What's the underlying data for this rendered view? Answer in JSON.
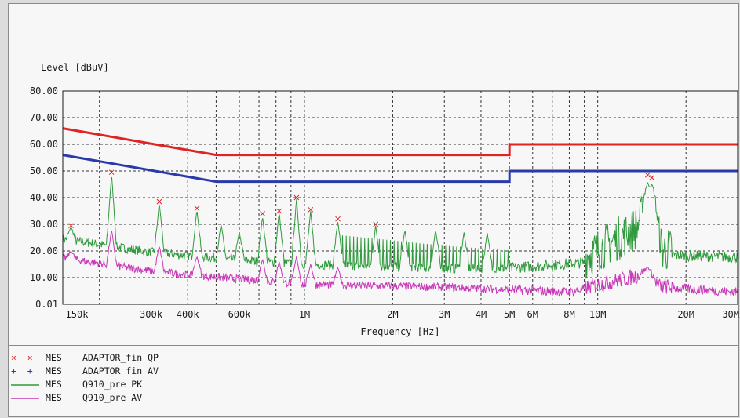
{
  "chart_data": {
    "type": "line",
    "ylabel": "Level [dBµV]",
    "xlabel": "Frequency [Hz]",
    "xscale": "log",
    "xlim": [
      150000,
      30000000
    ],
    "ylim": [
      0.01,
      80
    ],
    "grid": true,
    "yticks": [
      "80.00",
      "70.00",
      "60.00",
      "50.00",
      "40.00",
      "30.00",
      "20.00",
      "10.00",
      "0.01"
    ],
    "xticks": [
      {
        "label": "150k",
        "value": 150000
      },
      {
        "label": "300k",
        "value": 300000
      },
      {
        "label": "400k",
        "value": 400000
      },
      {
        "label": "600k",
        "value": 600000
      },
      {
        "label": "1M",
        "value": 1000000
      },
      {
        "label": "2M",
        "value": 2000000
      },
      {
        "label": "3M",
        "value": 3000000
      },
      {
        "label": "4M",
        "value": 4000000
      },
      {
        "label": "5M",
        "value": 5000000
      },
      {
        "label": "6M",
        "value": 6000000
      },
      {
        "label": "8M",
        "value": 8000000
      },
      {
        "label": "10M",
        "value": 10000000
      },
      {
        "label": "20M",
        "value": 20000000
      },
      {
        "label": "30M",
        "value": 30000000
      }
    ],
    "limit_lines": [
      {
        "kind": "QP limit",
        "color": "#e02424",
        "x": [
          150000,
          500000,
          500000,
          5000000,
          5000000,
          30000000
        ],
        "y": [
          66,
          56,
          56,
          56,
          60,
          60
        ]
      },
      {
        "kind": "AV limit",
        "color": "#2a3aa8",
        "x": [
          150000,
          500000,
          500000,
          5000000,
          5000000,
          30000000
        ],
        "y": [
          56,
          46,
          46,
          46,
          50,
          50
        ]
      }
    ],
    "peak_points": [
      {
        "x": 160000,
        "y": 29.5
      },
      {
        "x": 220000,
        "y": 49.5
      },
      {
        "x": 320000,
        "y": 38.5
      },
      {
        "x": 430000,
        "y": 36
      },
      {
        "x": 720000,
        "y": 34
      },
      {
        "x": 820000,
        "y": 35
      },
      {
        "x": 940000,
        "y": 40
      },
      {
        "x": 1050000,
        "y": 35.5
      },
      {
        "x": 1300000,
        "y": 32
      },
      {
        "x": 1750000,
        "y": 30
      },
      {
        "x": 14800000,
        "y": 48.5
      },
      {
        "x": 15300000,
        "y": 47.5
      }
    ],
    "series": [
      {
        "name": "Q910_pre PK",
        "color": "#2e9a3c",
        "baseline": [
          [
            150000,
            24
          ],
          [
            300000,
            19
          ],
          [
            600000,
            16
          ],
          [
            1000000,
            14.5
          ],
          [
            3000000,
            13
          ],
          [
            5000000,
            13
          ],
          [
            9000000,
            15
          ],
          [
            14000000,
            27
          ],
          [
            16000000,
            18
          ],
          [
            30000000,
            17
          ]
        ],
        "peaks": [
          [
            160000,
            29
          ],
          [
            220000,
            49
          ],
          [
            320000,
            38
          ],
          [
            430000,
            35.5
          ],
          [
            520000,
            30
          ],
          [
            600000,
            27
          ],
          [
            720000,
            33
          ],
          [
            820000,
            34.5
          ],
          [
            940000,
            39.5
          ],
          [
            1050000,
            35
          ],
          [
            1300000,
            31.5
          ],
          [
            1750000,
            29.5
          ],
          [
            2200000,
            28
          ],
          [
            2800000,
            28
          ],
          [
            3500000,
            27
          ],
          [
            4200000,
            27
          ],
          [
            14800000,
            46
          ],
          [
            15300000,
            45
          ]
        ]
      },
      {
        "name": "Q910_pre AV",
        "color": "#c837b8",
        "baseline": [
          [
            150000,
            17
          ],
          [
            300000,
            12
          ],
          [
            600000,
            9
          ],
          [
            1000000,
            7
          ],
          [
            3000000,
            6
          ],
          [
            5000000,
            5
          ],
          [
            8000000,
            4
          ],
          [
            14000000,
            10
          ],
          [
            16000000,
            6
          ],
          [
            30000000,
            4
          ]
        ],
        "peaks": [
          [
            160000,
            20
          ],
          [
            220000,
            28
          ],
          [
            320000,
            22
          ],
          [
            430000,
            18
          ],
          [
            720000,
            17
          ],
          [
            820000,
            16
          ],
          [
            940000,
            18
          ],
          [
            1050000,
            15
          ],
          [
            1300000,
            14
          ],
          [
            14800000,
            14
          ]
        ]
      }
    ]
  },
  "legend": [
    {
      "marker": "×  ×",
      "marker_color": "#e02424",
      "mes": "MES",
      "name": "ADAPTOR_fin QP"
    },
    {
      "marker": "+  +",
      "marker_color": "#2a3aa8",
      "mes": "MES",
      "name": "ADAPTOR_fin AV"
    },
    {
      "marker": "line",
      "marker_color": "#2e9a3c",
      "mes": "MES",
      "name": "Q910_pre PK"
    },
    {
      "marker": "line",
      "marker_color": "#c837b8",
      "mes": "MES",
      "name": "Q910_pre AV"
    }
  ]
}
